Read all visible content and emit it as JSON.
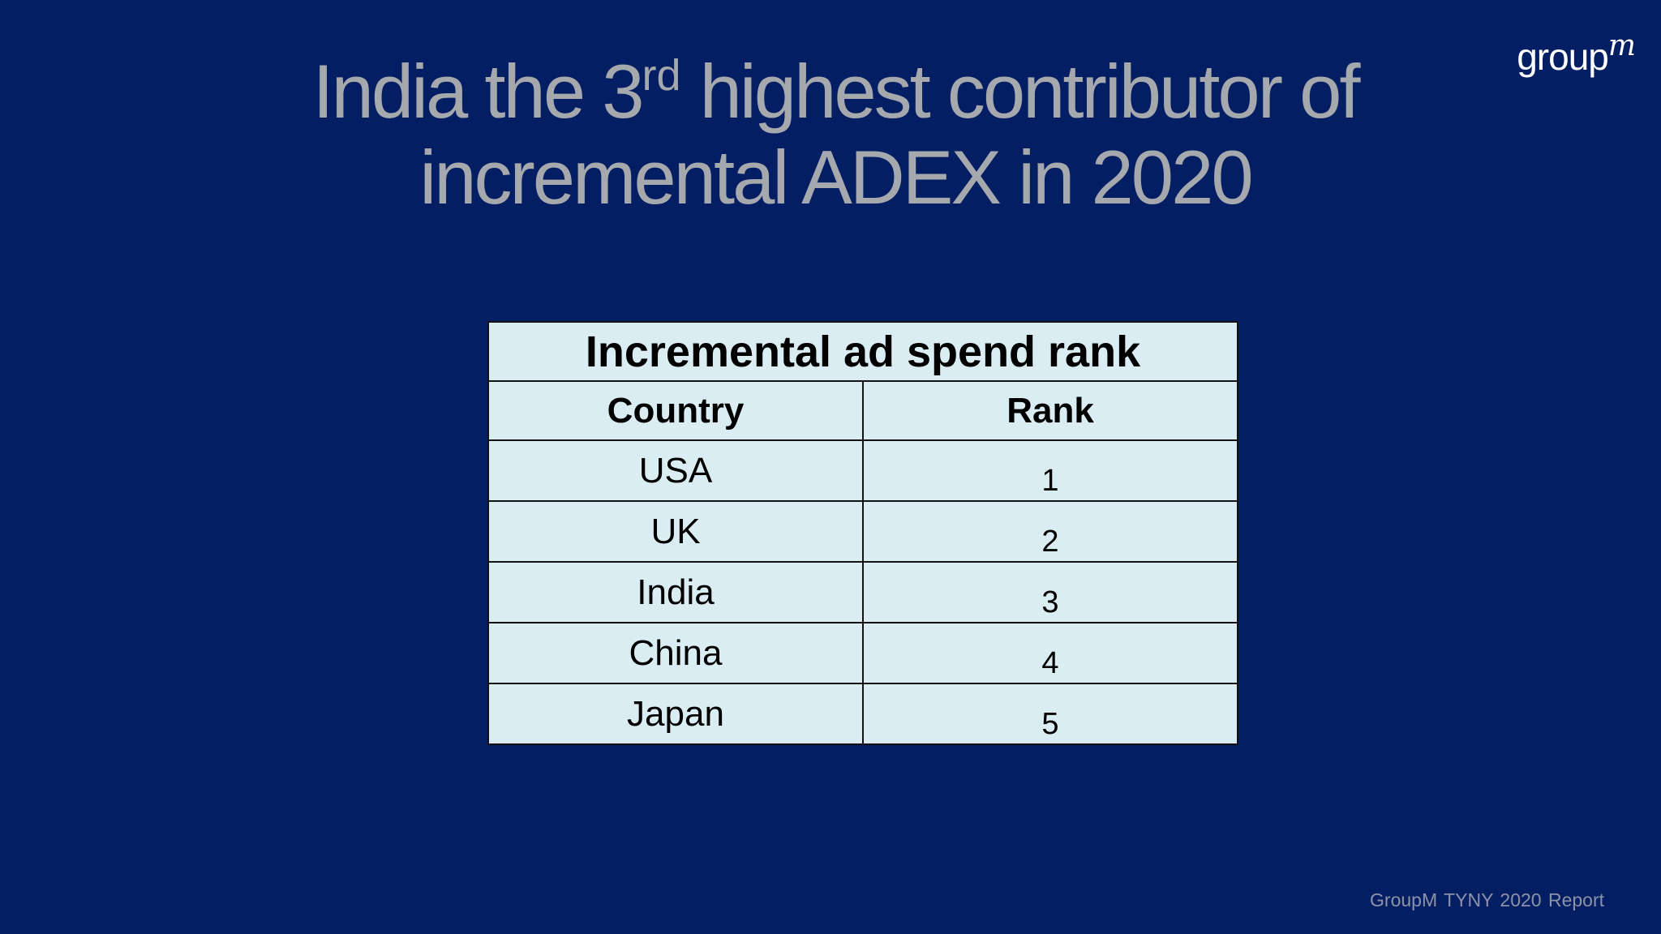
{
  "slide": {
    "title_line1_pre": "India the 3",
    "title_sup": "rd",
    "title_line1_post": " highest contributor of",
    "title_line2": "incremental ADEX in 2020",
    "logo_main": "group",
    "logo_m": "m",
    "footer": "GroupM TYNY 2020  Report"
  },
  "table": {
    "title": "Incremental ad spend rank",
    "headers": [
      "Country",
      "Rank"
    ],
    "rows": [
      {
        "country": "USA",
        "rank": "1"
      },
      {
        "country": "UK",
        "rank": "2"
      },
      {
        "country": "India",
        "rank": "3"
      },
      {
        "country": "China",
        "rank": "4"
      },
      {
        "country": "Japan",
        "rank": "5"
      }
    ]
  },
  "colors": {
    "background": "#031e63",
    "title": "#a5a8ad",
    "table_fill": "#daedf3"
  }
}
